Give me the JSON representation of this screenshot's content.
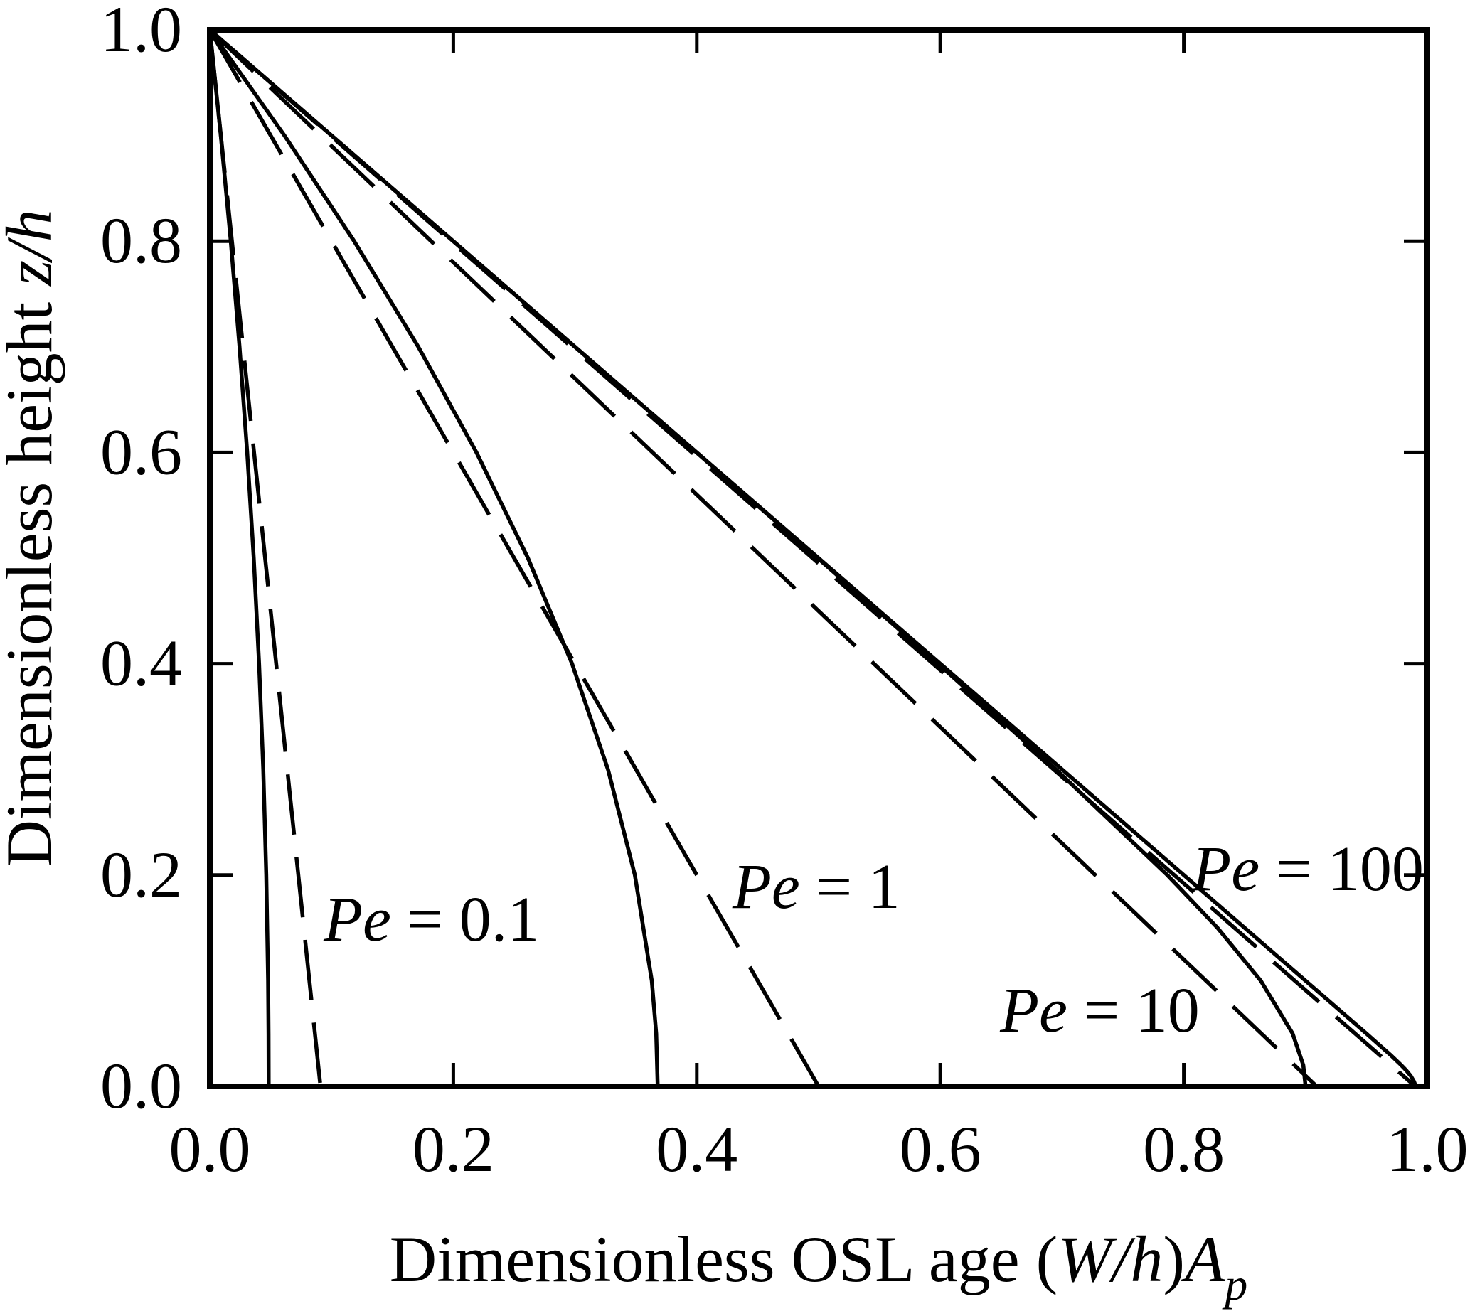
{
  "figure": {
    "kind": "scientific-line-chart",
    "background_color": "#ffffff",
    "ink_color": "#000000"
  },
  "chart_data": {
    "type": "line",
    "title": "",
    "xlabel": "Dimensionless OSL age (W/h)Ap",
    "ylabel": "Dimensionless height z/h",
    "xlabel_parts": [
      {
        "t": "Dimensionless OSL age ("
      },
      {
        "t": "W/h",
        "i": true
      },
      {
        "t": ")"
      },
      {
        "t": "A",
        "i": true
      },
      {
        "t": "p",
        "i": true,
        "sub": true
      }
    ],
    "ylabel_parts": [
      {
        "t": "Dimensionless height "
      },
      {
        "t": "z/h",
        "i": true
      }
    ],
    "xlim": [
      0.0,
      1.0
    ],
    "ylim": [
      0.0,
      1.0
    ],
    "grid": false,
    "legend": "none (curves labeled inline)",
    "x_axis": {
      "tick_values": [
        0.0,
        0.2,
        0.4,
        0.6,
        0.8,
        1.0
      ],
      "tick_labels": [
        "0.0",
        "0.2",
        "0.4",
        "0.6",
        "0.8",
        "1.0"
      ],
      "marked_ticks": [
        0.2,
        0.4,
        0.6,
        0.8
      ]
    },
    "y_axis": {
      "tick_values": [
        0.0,
        0.2,
        0.4,
        0.6,
        0.8,
        1.0
      ],
      "tick_labels": [
        "0.0",
        "0.2",
        "0.4",
        "0.6",
        "0.8",
        "1.0"
      ],
      "marked_ticks": [
        0.2,
        0.4,
        0.6,
        0.8
      ]
    },
    "series": [
      {
        "name": "Pe=0.1 solid",
        "pe": 0.1,
        "style": "solid",
        "points": [
          [
            0,
            1
          ],
          [
            0.00906,
            0.9
          ],
          [
            0.01721,
            0.8
          ],
          [
            0.02444,
            0.7
          ],
          [
            0.03072,
            0.6
          ],
          [
            0.03608,
            0.5
          ],
          [
            0.04048,
            0.4
          ],
          [
            0.04391,
            0.3
          ],
          [
            0.04638,
            0.2
          ],
          [
            0.04787,
            0.1
          ],
          [
            0.04825,
            0.05
          ],
          [
            0.04837,
            0
          ]
        ]
      },
      {
        "name": "Pe=0.1 dashed",
        "pe": 0.1,
        "style": "dashed",
        "points": [
          [
            0,
            1
          ],
          [
            0.09091,
            0
          ]
        ]
      },
      {
        "name": "Pe=1 solid",
        "pe": 1,
        "style": "solid",
        "points": [
          [
            0,
            1
          ],
          [
            0.06131,
            0.9
          ],
          [
            0.11855,
            0.8
          ],
          [
            0.17129,
            0.7
          ],
          [
            0.21907,
            0.6
          ],
          [
            0.26135,
            0.5
          ],
          [
            0.29756,
            0.4
          ],
          [
            0.32706,
            0.3
          ],
          [
            0.34915,
            0.2
          ],
          [
            0.36304,
            0.1
          ],
          [
            0.36665,
            0.05
          ],
          [
            0.36788,
            0
          ]
        ]
      },
      {
        "name": "Pe=1 dashed",
        "pe": 1,
        "style": "dashed",
        "points": [
          [
            0,
            1
          ],
          [
            0.5,
            0
          ]
        ]
      },
      {
        "name": "Pe=10 solid",
        "pe": 10,
        "style": "solid",
        "points": [
          [
            0,
            1
          ],
          [
            0.1,
            0.9
          ],
          [
            0.19997,
            0.8
          ],
          [
            0.29991,
            0.7
          ],
          [
            0.39976,
            0.6
          ],
          [
            0.49933,
            0.5
          ],
          [
            0.59817,
            0.4
          ],
          [
            0.69503,
            0.3
          ],
          [
            0.78647,
            0.2
          ],
          [
            0.82769,
            0.15
          ],
          [
            0.86322,
            0.1
          ],
          [
            0.88935,
            0.05
          ],
          [
            0.89813,
            0.02
          ],
          [
            0.90001,
            0
          ]
        ]
      },
      {
        "name": "Pe=10 dashed",
        "pe": 10,
        "style": "dashed",
        "points": [
          [
            0,
            1
          ],
          [
            0.90909,
            0
          ]
        ]
      },
      {
        "name": "Pe=100 solid",
        "pe": 100,
        "style": "solid",
        "points": [
          [
            0,
            1
          ],
          [
            0.1,
            0.9
          ],
          [
            0.2,
            0.8
          ],
          [
            0.3,
            0.7
          ],
          [
            0.4,
            0.6
          ],
          [
            0.5,
            0.5
          ],
          [
            0.6,
            0.4
          ],
          [
            0.7,
            0.3
          ],
          [
            0.8,
            0.2
          ],
          [
            0.9,
            0.1
          ],
          [
            0.92999,
            0.07
          ],
          [
            0.94993,
            0.05
          ],
          [
            0.9695,
            0.03
          ],
          [
            0.97865,
            0.02
          ],
          [
            0.98277,
            0.015
          ],
          [
            0.98632,
            0.01
          ],
          [
            0.98893,
            0.005
          ],
          [
            0.98959,
            0.003
          ],
          [
            0.98995,
            0.001
          ],
          [
            0.99,
            0
          ]
        ]
      },
      {
        "name": "Pe=100 dashed",
        "pe": 100,
        "style": "dashed",
        "points": [
          [
            0,
            1
          ],
          [
            0.9901,
            0
          ]
        ]
      }
    ],
    "annotations": [
      {
        "id": "pe-0.1",
        "text": "Pe = 0.1",
        "parts": [
          {
            "t": "Pe",
            "i": true
          },
          {
            "t": " = 0.1"
          }
        ],
        "x": 0.0935,
        "z": 0.138
      },
      {
        "id": "pe-1",
        "text": "Pe = 1",
        "parts": [
          {
            "t": "Pe",
            "i": true
          },
          {
            "t": " = 1"
          }
        ],
        "x": 0.4293,
        "z": 0.1689
      },
      {
        "id": "pe-10",
        "text": "Pe = 10",
        "parts": [
          {
            "t": "Pe",
            "i": true
          },
          {
            "t": " = 10"
          }
        ],
        "x": 0.649,
        "z": 0.0518
      },
      {
        "id": "pe-100",
        "text": "Pe = 100",
        "parts": [
          {
            "t": "Pe",
            "i": true
          },
          {
            "t": " = 100"
          }
        ],
        "x": 0.8068,
        "z": 0.1857
      }
    ]
  }
}
